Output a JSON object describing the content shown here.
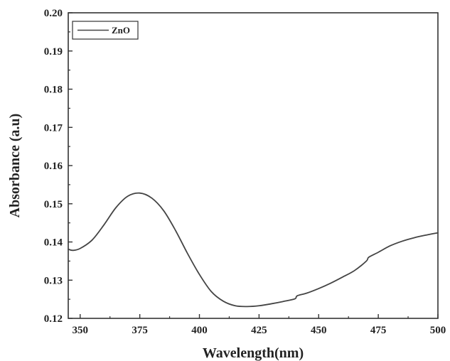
{
  "chart_data": {
    "type": "line",
    "title": "",
    "xlabel": "Wavelength(nm)",
    "ylabel": "Absorbance (a.u)",
    "xlim": [
      345,
      500
    ],
    "ylim": [
      0.12,
      0.2
    ],
    "xticks": [
      350,
      375,
      400,
      425,
      450,
      475,
      500
    ],
    "yticks": [
      0.12,
      0.13,
      0.14,
      0.15,
      0.16,
      0.17,
      0.18,
      0.19,
      0.2
    ],
    "xtick_labels": [
      "350",
      "375",
      "400",
      "425",
      "450",
      "475",
      "500"
    ],
    "ytick_labels": [
      "0.12",
      "0.13",
      "0.14",
      "0.15",
      "0.16",
      "0.17",
      "0.18",
      "0.19",
      "0.20"
    ],
    "grid": false,
    "legend_position": "top-left",
    "series": [
      {
        "name": "ZnO",
        "color": "#444444",
        "x": [
          345,
          347,
          350,
          355,
          360,
          365,
          370,
          375,
          380,
          385,
          390,
          395,
          400,
          405,
          410,
          415,
          420,
          425,
          430,
          435,
          440,
          441,
          445,
          450,
          455,
          460,
          465,
          470,
          471,
          475,
          480,
          485,
          490,
          495,
          500
        ],
        "y": [
          0.1381,
          0.1378,
          0.1383,
          0.1405,
          0.1445,
          0.149,
          0.152,
          0.1528,
          0.1515,
          0.1482,
          0.143,
          0.137,
          0.1315,
          0.127,
          0.1245,
          0.1233,
          0.1231,
          0.1233,
          0.1238,
          0.1244,
          0.1251,
          0.1259,
          0.1266,
          0.1278,
          0.1292,
          0.1308,
          0.1325,
          0.135,
          0.136,
          0.1373,
          0.139,
          0.1402,
          0.1411,
          0.1418,
          0.1424
        ]
      }
    ]
  }
}
